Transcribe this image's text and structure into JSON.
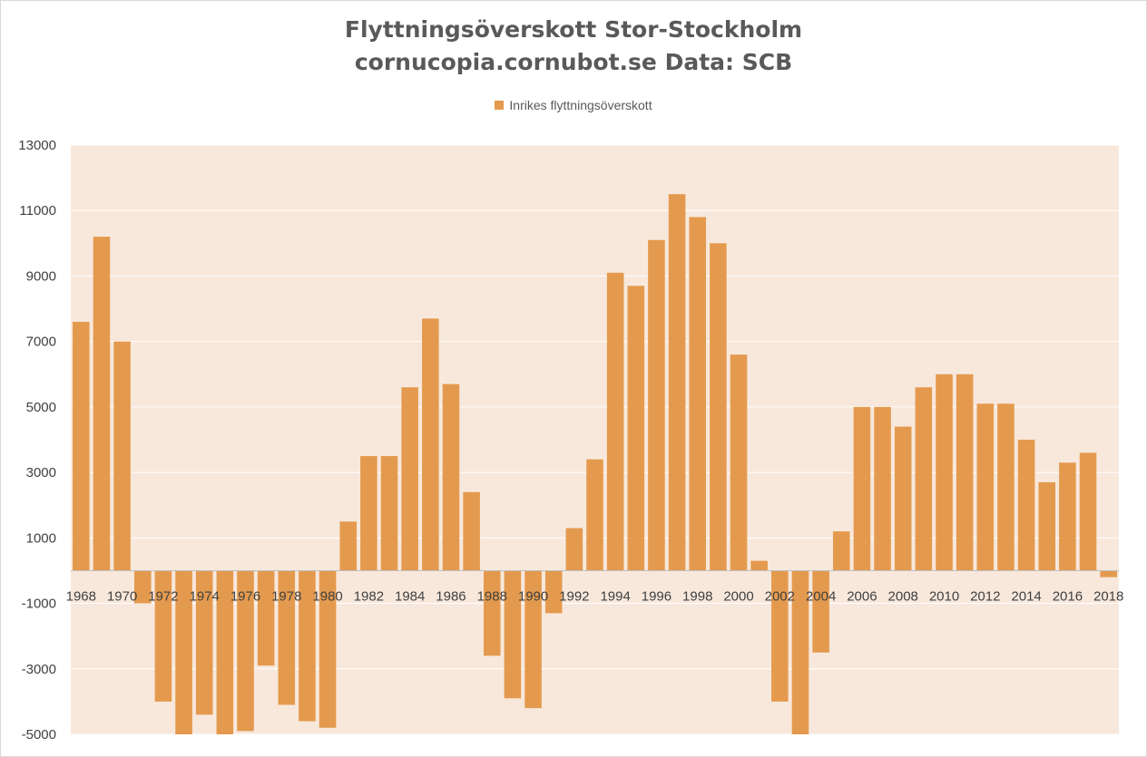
{
  "chart_data": {
    "type": "bar",
    "title": "Flyttningsöverskott Stor-Stockholm",
    "subtitle": "cornucopia.cornubot.se Data: SCB",
    "legend": {
      "position": "top",
      "label": "Inrikes flyttningsöverskott"
    },
    "colors": {
      "bar": "#e49a4e",
      "plot_bg": "#f8e8dc",
      "grid": "#ffffff"
    },
    "ylim": [
      -5000,
      13000
    ],
    "yticks": [
      13000,
      11000,
      9000,
      7000,
      5000,
      3000,
      1000,
      -1000,
      -3000,
      -5000
    ],
    "grid": true,
    "xlabel": "",
    "ylabel": "",
    "series": [
      {
        "name": "Inrikes flyttningsöverskott",
        "x": [
          1968,
          1969,
          1970,
          1971,
          1972,
          1973,
          1974,
          1975,
          1976,
          1977,
          1978,
          1979,
          1980,
          1981,
          1982,
          1983,
          1984,
          1985,
          1986,
          1987,
          1988,
          1989,
          1990,
          1991,
          1992,
          1993,
          1994,
          1995,
          1996,
          1997,
          1998,
          1999,
          2000,
          2001,
          2002,
          2003,
          2004,
          2005,
          2006,
          2007,
          2008,
          2009,
          2010,
          2011,
          2012,
          2013,
          2014,
          2015,
          2016,
          2017,
          2018
        ],
        "values": [
          7600,
          10200,
          7000,
          -1000,
          -4000,
          -5000,
          -4400,
          -5000,
          -4900,
          -2900,
          -4100,
          -4600,
          -4800,
          1500,
          3500,
          3500,
          5600,
          7700,
          5700,
          2400,
          -2600,
          -3900,
          -4200,
          -1300,
          1300,
          3400,
          9100,
          8700,
          10100,
          11500,
          10800,
          10000,
          6600,
          300,
          -4000,
          -5000,
          -2500,
          1200,
          5000,
          5000,
          4400,
          5600,
          6000,
          6000,
          5100,
          5100,
          4000,
          2700,
          3300,
          3600,
          -200
        ]
      }
    ],
    "x_tick_labels": [
      "1968",
      "1970",
      "1972",
      "1974",
      "1976",
      "1978",
      "1980",
      "1982",
      "1984",
      "1986",
      "1988",
      "1990",
      "1992",
      "1994",
      "1996",
      "1998",
      "2000",
      "2002",
      "2004",
      "2006",
      "2008",
      "2010",
      "2012",
      "2014",
      "2016",
      "2018"
    ]
  }
}
